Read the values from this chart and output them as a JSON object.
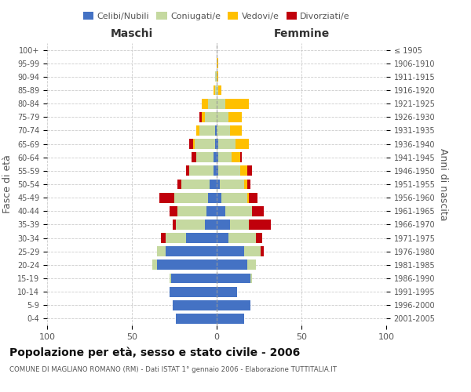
{
  "age_groups": [
    "0-4",
    "5-9",
    "10-14",
    "15-19",
    "20-24",
    "25-29",
    "30-34",
    "35-39",
    "40-44",
    "45-49",
    "50-54",
    "55-59",
    "60-64",
    "65-69",
    "70-74",
    "75-79",
    "80-84",
    "85-89",
    "90-94",
    "95-99",
    "100+"
  ],
  "birth_years": [
    "2001-2005",
    "1996-2000",
    "1991-1995",
    "1986-1990",
    "1981-1985",
    "1976-1980",
    "1971-1975",
    "1966-1970",
    "1961-1965",
    "1956-1960",
    "1951-1955",
    "1946-1950",
    "1941-1945",
    "1936-1940",
    "1931-1935",
    "1926-1930",
    "1921-1925",
    "1916-1920",
    "1911-1915",
    "1906-1910",
    "≤ 1905"
  ],
  "male": {
    "celibi": [
      24,
      26,
      28,
      27,
      35,
      30,
      18,
      7,
      6,
      5,
      4,
      2,
      2,
      1,
      1,
      0,
      0,
      0,
      0,
      0,
      0
    ],
    "coniugati": [
      0,
      0,
      0,
      1,
      3,
      5,
      12,
      17,
      17,
      20,
      17,
      14,
      10,
      12,
      9,
      7,
      5,
      1,
      1,
      0,
      0
    ],
    "vedovi": [
      0,
      0,
      0,
      0,
      0,
      0,
      0,
      0,
      0,
      0,
      0,
      0,
      0,
      1,
      2,
      2,
      4,
      1,
      0,
      0,
      0
    ],
    "divorziati": [
      0,
      0,
      0,
      0,
      0,
      0,
      3,
      2,
      5,
      9,
      2,
      2,
      3,
      2,
      0,
      1,
      0,
      0,
      0,
      0,
      0
    ]
  },
  "female": {
    "nubili": [
      16,
      20,
      12,
      20,
      18,
      16,
      7,
      8,
      5,
      3,
      2,
      1,
      1,
      1,
      0,
      0,
      0,
      0,
      0,
      0,
      0
    ],
    "coniugate": [
      0,
      0,
      0,
      1,
      5,
      10,
      16,
      11,
      16,
      15,
      14,
      13,
      8,
      10,
      8,
      7,
      5,
      1,
      0,
      0,
      0
    ],
    "vedove": [
      0,
      0,
      0,
      0,
      0,
      0,
      0,
      0,
      0,
      1,
      2,
      4,
      5,
      8,
      7,
      8,
      14,
      2,
      1,
      1,
      0
    ],
    "divorziate": [
      0,
      0,
      0,
      0,
      0,
      2,
      4,
      13,
      7,
      5,
      2,
      3,
      1,
      0,
      0,
      0,
      0,
      0,
      0,
      0,
      0
    ]
  },
  "color_celibi": "#4472c4",
  "color_coniugati": "#c5d9a0",
  "color_vedovi": "#ffc000",
  "color_divorziati": "#c0000b",
  "xlim": [
    -100,
    100
  ],
  "title": "Popolazione per età, sesso e stato civile - 2006",
  "subtitle": "COMUNE DI MAGLIANO ROMANO (RM) - Dati ISTAT 1° gennaio 2006 - Elaborazione TUTTITALIA.IT",
  "ylabel_left": "Fasce di età",
  "ylabel_right": "Anni di nascita",
  "xlabel_left": "Maschi",
  "xlabel_right": "Femmine",
  "bg_color": "#ffffff",
  "grid_color": "#cccccc"
}
